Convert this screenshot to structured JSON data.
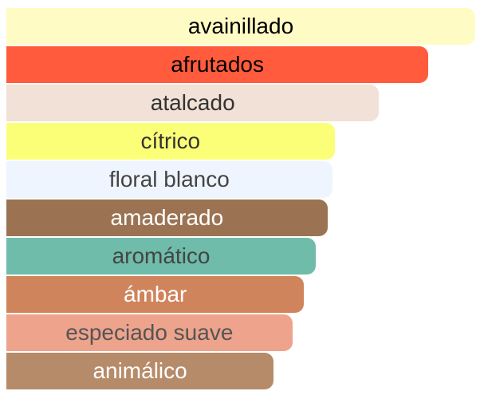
{
  "chart_data": {
    "type": "bar",
    "orientation": "horizontal",
    "title": "",
    "xlabel": "",
    "ylabel": "",
    "xlim": [
      0,
      100
    ],
    "grid": false,
    "legend": "none",
    "categories": [
      "avainillado",
      "afrutados",
      "atalcado",
      "cítrico",
      "floral blanco",
      "amaderado",
      "aromático",
      "ámbar",
      "especiado suave",
      "animálico"
    ],
    "values": [
      100,
      90,
      79.5,
      70,
      69.5,
      68.5,
      66,
      63.5,
      61,
      57
    ],
    "colors": [
      "#fffbc5",
      "#ff5b3c",
      "#f1e1d6",
      "#fbff77",
      "#eff5fe",
      "#9b7352",
      "#6fbcaa",
      "#cf845c",
      "#eda38c",
      "#b68b69"
    ],
    "label_colors": [
      "#000000",
      "#000000",
      "#333333",
      "#333333",
      "#444444",
      "#ffffff",
      "#444444",
      "#ffffff",
      "#555555",
      "#ffffff"
    ]
  }
}
